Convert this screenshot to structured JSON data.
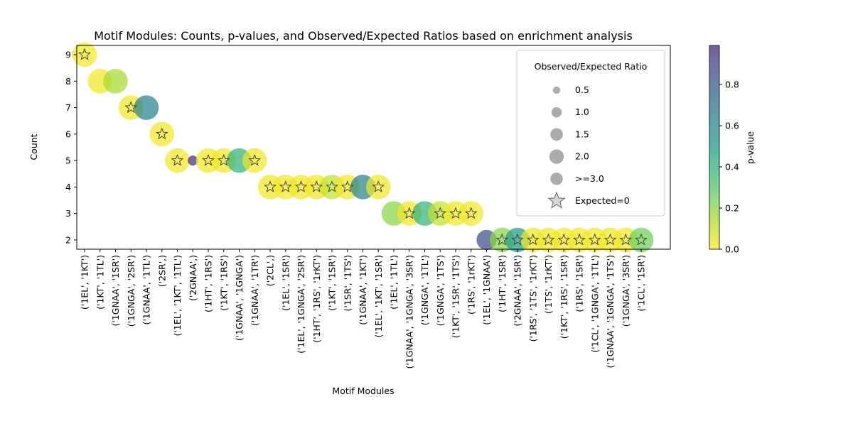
{
  "chart_data": {
    "type": "scatter",
    "title": "Motif Modules: Counts, p-values, and Observed/Expected Ratios based on enrichment analysis",
    "xlabel": "Motif Modules",
    "ylabel": "Count",
    "ylim": [
      1.65,
      9.35
    ],
    "yticks": [
      2,
      3,
      4,
      5,
      6,
      7,
      8,
      9
    ],
    "colorbar": {
      "label": "p-value",
      "range": [
        0.0,
        0.99
      ],
      "ticks": [
        "0.0",
        "0.2",
        "0.4",
        "0.6",
        "0.8"
      ],
      "colormap": "viridis_r"
    },
    "categories": [
      "('1EL', '1KT')",
      "('1KT', '1TL')",
      "('1GNAA', '1SR')",
      "('1GNGA', '2SR')",
      "('1GNAA', '1TL')",
      "('2SR',)",
      "('1EL', '1KT', '1TL')",
      "('2GNAA',)",
      "('1HT', '1RS')",
      "('1KT', '1RS')",
      "('1GNAA', '1GNGA')",
      "('1GNAA', '1TR')",
      "('2CL',)",
      "('1EL', '1SR')",
      "('1EL', '1GNGA', '2SR')",
      "('1HT', '1RS', '1rKT')",
      "('1KT', '1SR')",
      "('1SR', '1TS')",
      "('1GNAA', '1KT')",
      "('1EL', '1KT', '1SR')",
      "('1EL', '1TL')",
      "('1GNAA', '1GNGA', '3SR')",
      "('1GNGA', '1TL')",
      "('1GNGA', '1TS')",
      "('1KT', '1SR', '1TS')",
      "('1RS', '1rKT')",
      "('1EL', '1GNAA')",
      "('1HT', '1SR')",
      "('2GNAA', '1SR')",
      "('1RS', '1TS', '1rKT')",
      "('1TS', '1rKT')",
      "('1KT', '1RS', '1SR')",
      "('1RS', '1SR')",
      "('1CL', '1GNGA', '1TL')",
      "('1GNAA', '1GNGA', '1TS')",
      "('1GNGA', '3SR')",
      "('1CL', '1SR')"
    ],
    "series": [
      {
        "counts": [
          9,
          8,
          8,
          7,
          7,
          6,
          5,
          5,
          5,
          5,
          5,
          5,
          4,
          4,
          4,
          4,
          4,
          4,
          4,
          4,
          3,
          3,
          3,
          3,
          3,
          3,
          2,
          2,
          2,
          2,
          2,
          2,
          2,
          2,
          2,
          2,
          2
        ],
        "p_values": [
          0.02,
          0.02,
          0.15,
          0.02,
          0.62,
          0.02,
          0.02,
          0.97,
          0.02,
          0.02,
          0.4,
          0.02,
          0.02,
          0.02,
          0.02,
          0.02,
          0.1,
          0.02,
          0.62,
          0.02,
          0.2,
          0.02,
          0.4,
          0.1,
          0.02,
          0.02,
          0.85,
          0.2,
          0.5,
          0.02,
          0.02,
          0.02,
          0.02,
          0.02,
          0.02,
          0.02,
          0.25
        ],
        "ratios": [
          3,
          3,
          3,
          3,
          3,
          3,
          3,
          0.5,
          3,
          3,
          3,
          3,
          3,
          3,
          3,
          3,
          3,
          3,
          3,
          3,
          3,
          3,
          3,
          3,
          3,
          3,
          2,
          3,
          3,
          3,
          3,
          3,
          3,
          3,
          3,
          3,
          3
        ],
        "expected_zero": [
          true,
          false,
          false,
          true,
          false,
          true,
          true,
          false,
          true,
          true,
          false,
          true,
          true,
          true,
          true,
          true,
          true,
          true,
          false,
          true,
          false,
          true,
          false,
          true,
          true,
          true,
          false,
          true,
          true,
          true,
          true,
          true,
          true,
          true,
          true,
          true,
          true
        ]
      }
    ],
    "legend": {
      "title": "Observed/Expected Ratio",
      "placement": "upper right",
      "entries": [
        {
          "label": "0.5",
          "ratio": 0.5
        },
        {
          "label": "1.0",
          "ratio": 1.0
        },
        {
          "label": "1.5",
          "ratio": 1.5
        },
        {
          "label": "2.0",
          "ratio": 2.0
        },
        {
          "label": ">=3.0",
          "ratio": 3.0
        },
        {
          "label": "Expected=0",
          "marker": "star"
        }
      ]
    }
  }
}
